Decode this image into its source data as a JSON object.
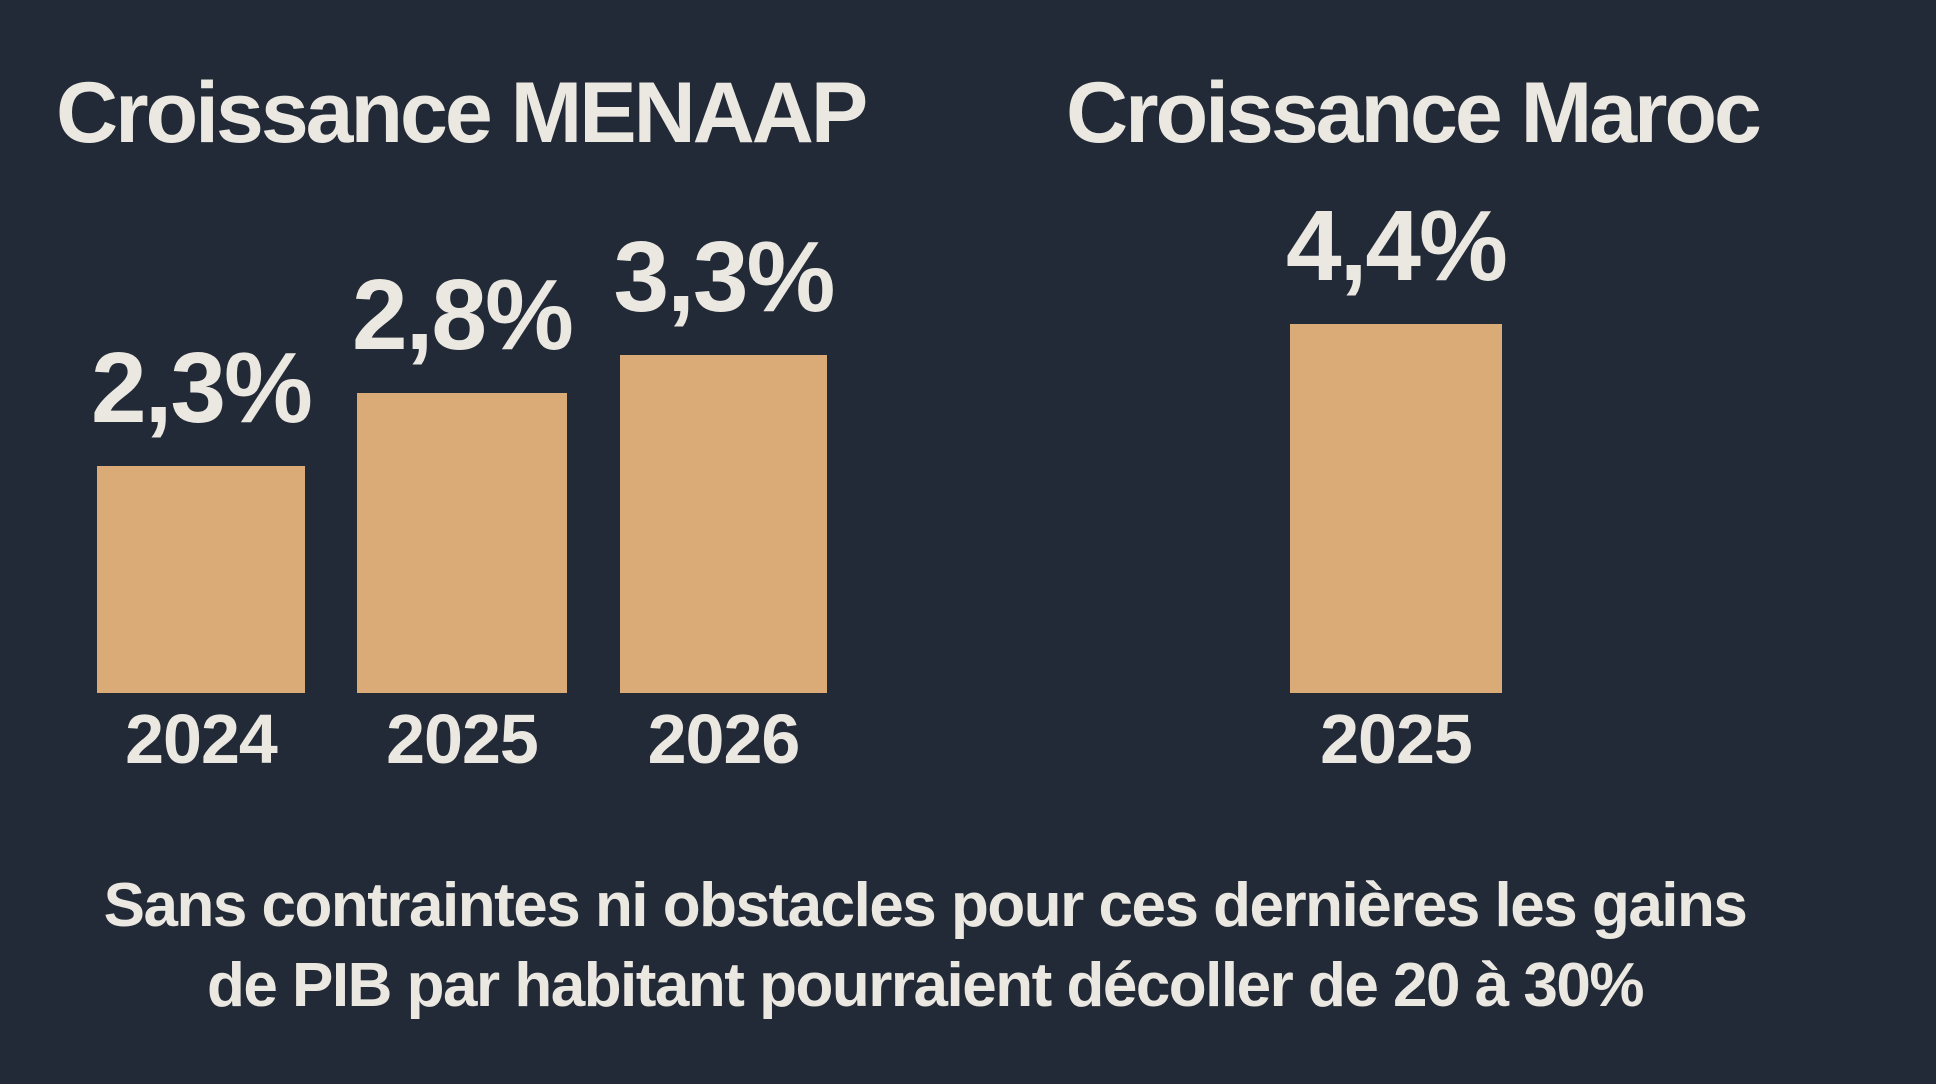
{
  "colors": {
    "background": "#212a36",
    "bar": "#daab76",
    "text": "#ebe7e1"
  },
  "caption": {
    "line1": "Sans contraintes ni obstacles pour ces dernières les gains",
    "line2": "de PIB par habitant pourraient décoller de 20 à 30%"
  },
  "chart_data": [
    {
      "type": "bar",
      "title": "Croissance MENAAP",
      "categories": [
        "2024",
        "2025",
        "2026"
      ],
      "values": [
        2.3,
        2.8,
        3.3
      ],
      "value_labels": [
        "2,3%",
        "2,8%",
        "3,3%"
      ],
      "unit": "%",
      "ylabel": "",
      "xlabel": "",
      "grid": false,
      "legend": false
    },
    {
      "type": "bar",
      "title": "Croissance Maroc",
      "categories": [
        "2025"
      ],
      "values": [
        4.4
      ],
      "value_labels": [
        "4,4%"
      ],
      "unit": "%",
      "ylabel": "",
      "xlabel": "",
      "grid": false,
      "legend": false
    }
  ]
}
